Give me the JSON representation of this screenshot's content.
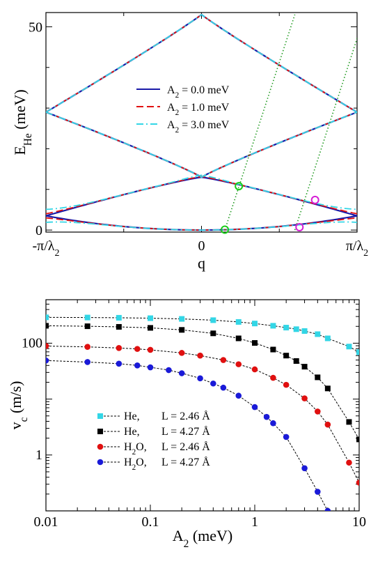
{
  "chart_data": [
    {
      "type": "line",
      "xlabel": "q",
      "ylabel": "E",
      "ylabel_sub": "He",
      "ylabel_unit": "(meV)",
      "xlim": [
        -1,
        1
      ],
      "ylim": [
        -0.5,
        53.5
      ],
      "x_ticks": [
        {
          "value": -1,
          "label": "-π/λ",
          "sub": "2"
        },
        {
          "value": 0,
          "label": "0",
          "sub": ""
        },
        {
          "value": 1,
          "label": "π/λ",
          "sub": "2"
        }
      ],
      "y_ticks": [
        {
          "value": 0,
          "label": "0"
        },
        {
          "value": 50,
          "label": "50"
        }
      ],
      "band_edges": {
        "q0": 0,
        "q_edge": 3.5,
        "q_mid": 13.0,
        "q_top": 29.0,
        "q_apex": 53.0
      },
      "gaps": {
        "A0": 0.0,
        "A1": 0.5,
        "A3": 1.6
      },
      "series": [
        {
          "name_main": "A",
          "name_sub": "2",
          "name_rest": " = 0.0 meV",
          "color": "#1a1aa8",
          "dash": "",
          "gap_key": "A0"
        },
        {
          "name_main": "A",
          "name_sub": "2",
          "name_rest": " = 1.0 meV",
          "color": "#e01010",
          "dash": "10,5",
          "gap_key": "A1"
        },
        {
          "name_main": "A",
          "name_sub": "2",
          "name_rest": " = 3.0 meV",
          "color": "#33d6e6",
          "dash": "10,4,2,4",
          "gap_key": "A3"
        }
      ],
      "dotted_lines": [
        {
          "color": "#1f9a1f",
          "points": [
            [
              0.15,
              0.0
            ],
            [
              0.6,
              53.0
            ]
          ]
        },
        {
          "color": "#1f9a1f",
          "points": [
            [
              0.6,
              0.0
            ],
            [
              1.05,
              53.0
            ]
          ]
        }
      ],
      "markers": [
        {
          "x": 0.15,
          "y": 0.1,
          "color": "#19cc19"
        },
        {
          "x": 0.24,
          "y": 10.8,
          "color": "#19cc19"
        },
        {
          "x": 0.63,
          "y": 0.7,
          "color": "#d61ed6"
        },
        {
          "x": 0.73,
          "y": 7.4,
          "color": "#d61ed6"
        }
      ]
    },
    {
      "type": "scatter",
      "xlabel": "A",
      "xlabel_sub": "2",
      "xlabel_unit": " (meV)",
      "ylabel": "v",
      "ylabel_sub": "c",
      "ylabel_unit": " (m/s)",
      "xscale": "log",
      "yscale": "log",
      "xlim": [
        0.01,
        10
      ],
      "ylim": [
        0.1,
        600
      ],
      "x_ticks": [
        {
          "value": 0.01,
          "label": "0.01"
        },
        {
          "value": 0.1,
          "label": "0.1"
        },
        {
          "value": 1,
          "label": "1"
        },
        {
          "value": 10,
          "label": "10"
        }
      ],
      "y_ticks": [
        {
          "value": 1,
          "label": "1"
        },
        {
          "value": 100,
          "label": "100"
        }
      ],
      "legend_position": "bottom-left",
      "series": [
        {
          "name_main": "He,",
          "name_sub": "",
          "name_rest": "L = 2.46 Å",
          "color": "#33d6e6",
          "marker": "square",
          "x": [
            0.01,
            0.025,
            0.05,
            0.1,
            0.2,
            0.4,
            0.7,
            1.0,
            1.5,
            2.0,
            2.5,
            3.0,
            4.0,
            5.0,
            8.0,
            10.0
          ],
          "y": [
            290,
            288,
            285,
            280,
            272,
            258,
            240,
            225,
            205,
            190,
            178,
            165,
            145,
            122,
            87,
            69
          ]
        },
        {
          "name_main": "He,",
          "name_sub": "",
          "name_rest": "L = 4.27 Å",
          "color": "#000000",
          "marker": "square",
          "x": [
            0.01,
            0.025,
            0.05,
            0.1,
            0.2,
            0.4,
            0.7,
            1.0,
            1.5,
            2.0,
            2.5,
            3.0,
            4.0,
            5.0,
            8.0,
            10.0
          ],
          "y": [
            205,
            201,
            196,
            188,
            173,
            150,
            122,
            101,
            77,
            60,
            48,
            38,
            24.5,
            15.5,
            3.9,
            1.9
          ]
        },
        {
          "name_main": "H",
          "name_sub": "2",
          "name_rest": "O,  L = 2.46 Å",
          "color": "#e01010",
          "marker": "circle",
          "x": [
            0.01,
            0.025,
            0.05,
            0.075,
            0.1,
            0.2,
            0.3,
            0.5,
            0.7,
            1.0,
            1.5,
            2.0,
            3.0,
            4.0,
            5.0,
            8.0,
            10.0
          ],
          "y": [
            89,
            86,
            82,
            79,
            76,
            67,
            60,
            50,
            42,
            34,
            24,
            18,
            10.3,
            6.0,
            3.5,
            0.73,
            0.32
          ]
        },
        {
          "name_main": "H",
          "name_sub": "2",
          "name_rest": "O,  L = 4.27 Å",
          "color": "#1a1ad8",
          "marker": "circle",
          "x": [
            0.01,
            0.025,
            0.05,
            0.075,
            0.1,
            0.15,
            0.2,
            0.3,
            0.4,
            0.5,
            0.7,
            1.0,
            1.3,
            1.5,
            2.0,
            3.0,
            4.0,
            5.0
          ],
          "y": [
            49,
            46,
            43,
            40,
            37,
            33,
            29,
            23.5,
            19,
            16,
            11.5,
            7.2,
            4.8,
            3.7,
            2.1,
            0.58,
            0.22,
            0.1
          ]
        }
      ]
    }
  ]
}
